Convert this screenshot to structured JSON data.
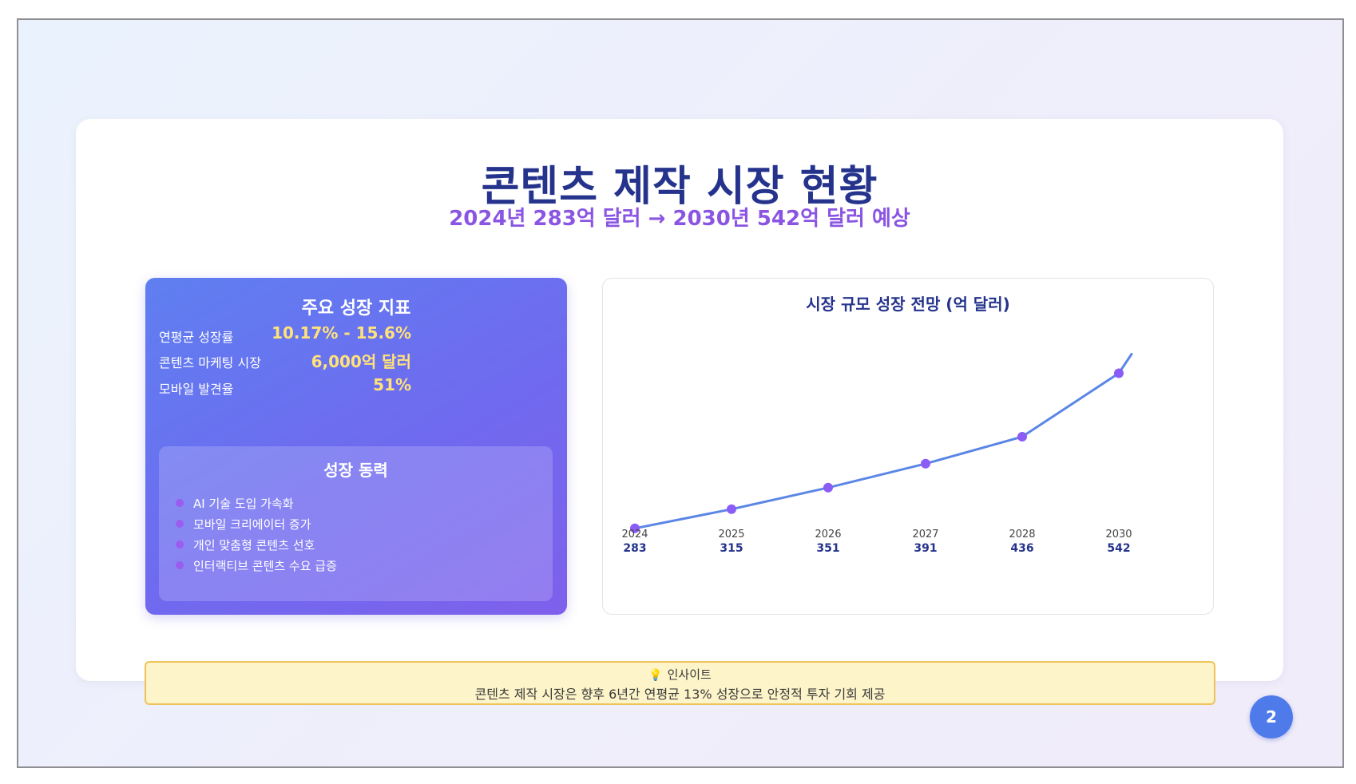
{
  "slide": {
    "title": "콘텐츠 제작 시장 현황",
    "subtitle": "2024년 283억 달러 → 2030년 542억 달러 예상",
    "page_number": "2"
  },
  "metrics": {
    "title": "주요 성장 지표",
    "rows": [
      {
        "label": "연평균 성장률",
        "value": "10.17% - 15.6%"
      },
      {
        "label": "콘텐츠 마케팅 시장",
        "value": "6,000억 달러"
      },
      {
        "label": "모바일 발견율",
        "value": "51%"
      }
    ]
  },
  "drivers": {
    "title": "성장 동력",
    "items": [
      "AI 기술 도입 가속화",
      "모바일 크리에이터 증가",
      "개인 맞춤형 콘텐츠 선호",
      "인터랙티브 콘텐츠 수요 급증"
    ]
  },
  "insight": {
    "icon": "lightbulb-icon",
    "heading": "인사이트",
    "text": "콘텐츠 제작 시장은 향후 6년간 연평균 13% 성장으로 안정적 투자 기회 제공"
  },
  "colors": {
    "title": "#25338c",
    "subtitle": "#8a55e2",
    "metric_value": "#ffe27a",
    "line": "#5b86e5",
    "point": "#8b5cf6",
    "badge": "#4f7bea"
  },
  "chart_data": {
    "type": "line",
    "title": "시장 규모 성장 전망 (억 달러)",
    "x": [
      "2024",
      "2025",
      "2026",
      "2027",
      "2028",
      "2030"
    ],
    "series": [
      {
        "values": [
          283,
          315,
          351,
          391,
          436,
          542
        ]
      }
    ],
    "ylim": [
      280,
      600
    ],
    "grid": false,
    "legend": "none"
  }
}
